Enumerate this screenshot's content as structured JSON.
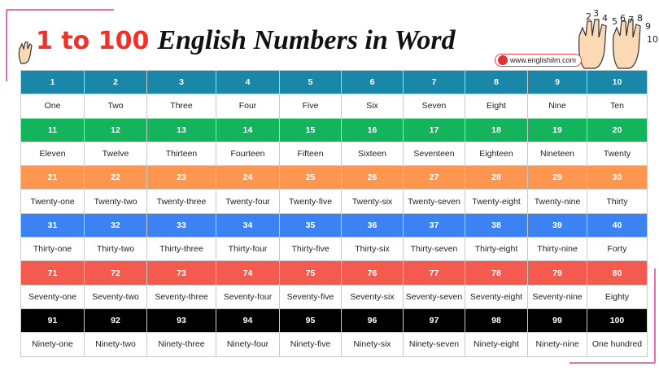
{
  "header": {
    "title_highlight": "1 to 100",
    "title": "English Numbers in Word",
    "website": "www.englishilm.com",
    "icon_digits": [
      "2",
      "3",
      "4",
      "5",
      "6",
      "7",
      "8",
      "9",
      "10"
    ]
  },
  "table": {
    "groups": [
      {
        "color": "#1b87a8",
        "text_color": "#ffffff",
        "numbers": [
          1,
          2,
          3,
          4,
          5,
          6,
          7,
          8,
          9,
          10
        ],
        "words": [
          "One",
          "Two",
          "Three",
          "Four",
          "Five",
          "Six",
          "Seven",
          "Eight",
          "Nine",
          "Ten"
        ]
      },
      {
        "color": "#14b45c",
        "text_color": "#ffffff",
        "numbers": [
          11,
          12,
          13,
          14,
          15,
          16,
          17,
          18,
          19,
          20
        ],
        "words": [
          "Eleven",
          "Twelve",
          "Thirteen",
          "Fourteen",
          "Fifteen",
          "Sixteen",
          "Seventeen",
          "Eighteen",
          "Nineteen",
          "Twenty"
        ]
      },
      {
        "color": "#ff9650",
        "text_color": "#ffffff",
        "numbers": [
          21,
          22,
          23,
          24,
          25,
          26,
          27,
          28,
          29,
          30
        ],
        "words": [
          "Twenty-one",
          "Twenty-two",
          "Twenty-three",
          "Twenty-four",
          "Twenty-five",
          "Twenty-six",
          "Twenty-seven",
          "Twenty-eight",
          "Twenty-nine",
          "Thirty"
        ]
      },
      {
        "color": "#3d82f4",
        "text_color": "#ffffff",
        "numbers": [
          31,
          32,
          33,
          34,
          35,
          36,
          37,
          38,
          39,
          40
        ],
        "words": [
          "Thirty-one",
          "Thirty-two",
          "Thirty-three",
          "Thirty-four",
          "Thirty-five",
          "Thirty-six",
          "Thirty-seven",
          "Thirty-eight",
          "Thirty-nine",
          "Forty"
        ]
      },
      {
        "color": "#f45a4d",
        "text_color": "#ffffff",
        "numbers": [
          71,
          72,
          73,
          74,
          75,
          76,
          77,
          78,
          79,
          80
        ],
        "words": [
          "Seventy-one",
          "Seventy-two",
          "Seventy-three",
          "Seventy-four",
          "Seventy-five",
          "Seventy-six",
          "Seventy-seven",
          "Seventy-eight",
          "Seventy-nine",
          "Eighty"
        ]
      },
      {
        "color": "#000000",
        "text_color": "#ffffff",
        "numbers": [
          91,
          92,
          93,
          94,
          95,
          96,
          97,
          98,
          99,
          100
        ],
        "words": [
          "Ninety-one",
          "Ninety-two",
          "Ninety-three",
          "Ninety-four",
          "Ninety-five",
          "Ninety-six",
          "Ninety-seven",
          "Ninety-eight",
          "Ninety-nine",
          "One hundred"
        ]
      }
    ]
  }
}
